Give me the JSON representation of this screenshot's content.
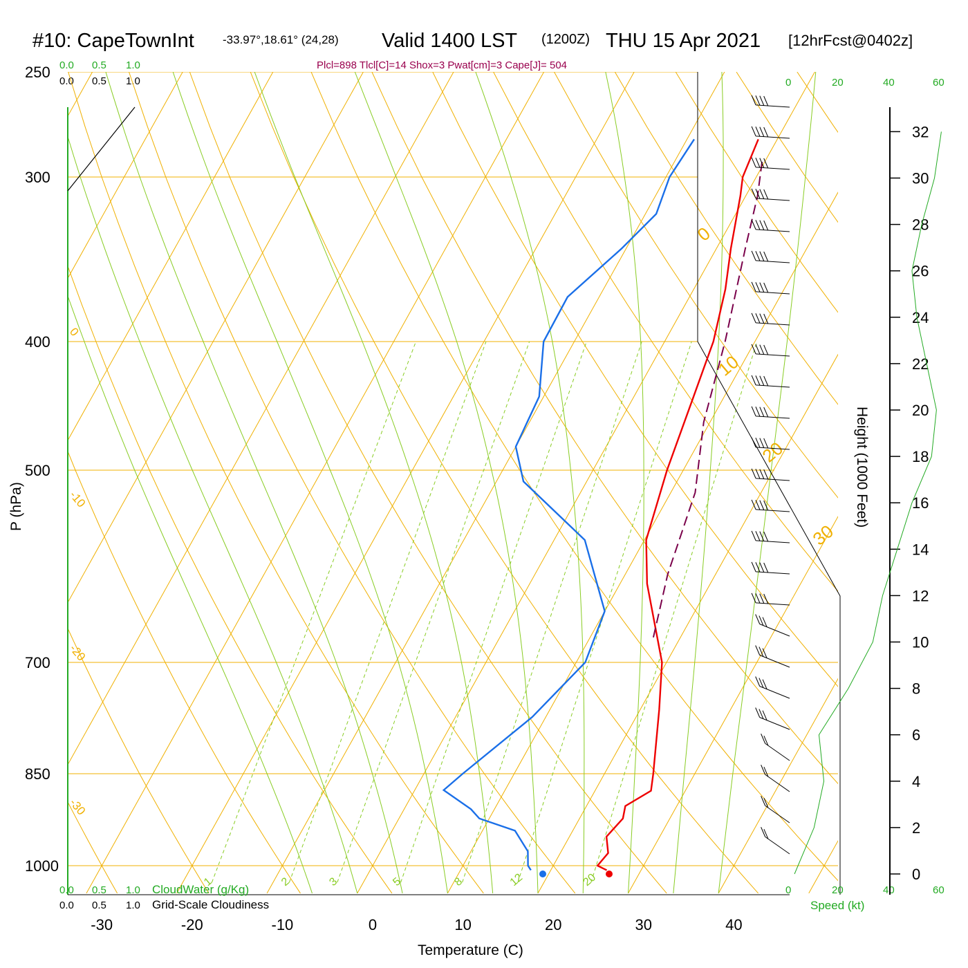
{
  "header": {
    "station": "#10: CapeTownInt",
    "coords": "-33.97°,18.61° (24,28)",
    "valid": "Valid 1400 LST",
    "zulu": "(1200Z)",
    "date": "THU 15 Apr 2021",
    "forecast": "[12hrFcst@0402z]",
    "params": "Plcl=898 Tlcl[C]=14 Shox=3 Pwat[cm]=3 Cape[J]= 504"
  },
  "colors": {
    "isotherm": "#f0b000",
    "mixing_ratio": "#88cc22",
    "temperature": "#ee0000",
    "dewpoint": "#1a6fe8",
    "parcel": "#7a004a",
    "green": "#22aa22",
    "params": "#99004d"
  },
  "scales": {
    "cloud_top": [
      "0.0",
      "0.5",
      "1.0"
    ],
    "cloud_bottom": [
      "0.0",
      "0.5",
      "1.0"
    ],
    "cloudwater_label": "CloudWater (g/Kg)",
    "cloudiness_label": "Grid-Scale Cloudiness",
    "speed_label": "Speed (kt)",
    "speed_ticks": [
      "0",
      "20",
      "40",
      "60"
    ]
  },
  "chart_data": {
    "type": "line",
    "title": "",
    "xlabel": "Temperature (C)",
    "ylabel": "P (hPa)",
    "y2label": "Height (1000 Feet)",
    "xlim": [
      -30,
      40
    ],
    "ylim": [
      1000,
      250
    ],
    "x_ticks": [
      "-30",
      "-20",
      "-10",
      "0",
      "10",
      "20",
      "30",
      "40"
    ],
    "pressure_ticks": [
      "250",
      "300",
      "400",
      "500",
      "700",
      "850",
      "1000"
    ],
    "height_ticks": [
      "0",
      "2",
      "4",
      "6",
      "8",
      "10",
      "12",
      "14",
      "16",
      "18",
      "20",
      "22",
      "24",
      "26",
      "28",
      "30",
      "32"
    ],
    "isotherm_labels": [
      "30",
      "20",
      "10",
      "0",
      "-10",
      "-20",
      "-30"
    ],
    "mixing_ratio_labels": [
      "1",
      "2",
      "3",
      "5",
      "8",
      "12",
      "20"
    ],
    "series": [
      {
        "name": "Temperature",
        "points": [
          [
            26.2,
            1008
          ],
          [
            24.9,
            1000
          ],
          [
            25.3,
            978
          ],
          [
            24.1,
            950
          ],
          [
            24.8,
            920
          ],
          [
            24.3,
            900
          ],
          [
            26.2,
            876
          ],
          [
            25.4,
            850
          ],
          [
            22.1,
            760
          ],
          [
            19.5,
            700
          ],
          [
            13.0,
            610
          ],
          [
            10.2,
            565
          ],
          [
            8.2,
            500
          ],
          [
            6.6,
            440
          ],
          [
            5.4,
            400
          ],
          [
            3.5,
            365
          ],
          [
            1.6,
            340
          ],
          [
            -0.6,
            310
          ],
          [
            -1.5,
            300
          ],
          [
            -2.1,
            281
          ]
        ]
      },
      {
        "name": "Dewpoint",
        "points": [
          [
            17.8,
            1008
          ],
          [
            17.2,
            1000
          ],
          [
            16.3,
            975
          ],
          [
            13.6,
            940
          ],
          [
            8.9,
            920
          ],
          [
            7.4,
            905
          ],
          [
            3.2,
            875
          ],
          [
            4.3,
            850
          ],
          [
            8.5,
            770
          ],
          [
            11.0,
            700
          ],
          [
            10.0,
            640
          ],
          [
            3.4,
            565
          ],
          [
            -7.0,
            510
          ],
          [
            -10.0,
            480
          ],
          [
            -10.5,
            440
          ],
          [
            -13.4,
            400
          ],
          [
            -13.5,
            370
          ],
          [
            -10.5,
            340
          ],
          [
            -8.8,
            320
          ],
          [
            -9.6,
            300
          ],
          [
            -9.2,
            281
          ]
        ]
      },
      {
        "name": "Parcel",
        "points": [
          [
            17.0,
            670
          ],
          [
            14.7,
            600
          ],
          [
            12.7,
            520
          ],
          [
            9.3,
            460
          ],
          [
            6.7,
            400
          ],
          [
            3.2,
            340
          ],
          [
            1.3,
            310
          ],
          [
            -0.5,
            290
          ]
        ]
      }
    ],
    "height_profile": [
      [
        0,
        0.5
      ],
      [
        2,
        2.5
      ],
      [
        4,
        3.5
      ],
      [
        6,
        3.0
      ],
      [
        8,
        6.0
      ],
      [
        10,
        8.5
      ],
      [
        12,
        9.5
      ],
      [
        14,
        11.0
      ],
      [
        16,
        12.5
      ],
      [
        18,
        14.5
      ],
      [
        20,
        15.0
      ],
      [
        22,
        14.0
      ],
      [
        24,
        13.0
      ],
      [
        26,
        12.5
      ],
      [
        28,
        13.5
      ],
      [
        30,
        14.8
      ],
      [
        32,
        15.5
      ]
    ],
    "wind_levels": 25
  }
}
